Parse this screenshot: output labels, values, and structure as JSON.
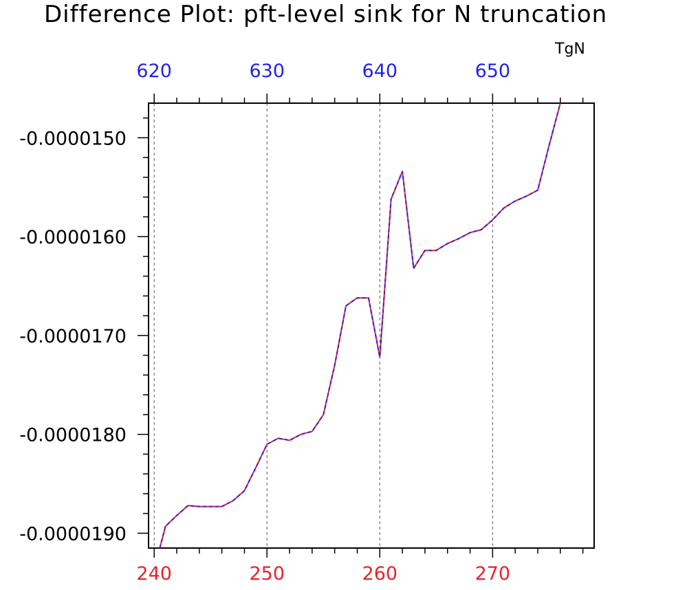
{
  "chart_data": {
    "type": "line",
    "title": "Difference Plot: pft-level sink for N truncation",
    "top_axis_label": "TgN",
    "colors": {
      "bottom_ticks": "#e8232a",
      "top_ticks": "#2323e8",
      "line_solid": "#e8232a",
      "line_dashed": "#2323e8",
      "frame": "#000000",
      "grid": "#555555"
    },
    "xlim": [
      239.5,
      279
    ],
    "ylim": [
      -1.915e-05,
      -1.465e-05
    ],
    "x_bottom_ticks": [
      240,
      250,
      260,
      270
    ],
    "x_bottom_tick_labels": [
      "240",
      "250",
      "260",
      "270"
    ],
    "x_top_ticks": [
      240,
      250,
      260,
      270
    ],
    "x_top_tick_labels": [
      "620",
      "630",
      "640",
      "650"
    ],
    "y_ticks": [
      -1.5e-05,
      -1.6e-05,
      -1.7e-05,
      -1.8e-05,
      -1.9e-05
    ],
    "y_tick_labels": [
      "-0.0000150",
      "-0.0000160",
      "-0.0000170",
      "-0.0000180",
      "-0.0000190"
    ],
    "grid": "vertical dashed lines at major bottom ticks",
    "series": [
      {
        "x": [
          240.5,
          241,
          242,
          243,
          244,
          245,
          246,
          247,
          248,
          249,
          250,
          251,
          252,
          253,
          254,
          255,
          256,
          257,
          258,
          259,
          260,
          261,
          262,
          263,
          264,
          265,
          266,
          267,
          268,
          269,
          270,
          271,
          272,
          273,
          274,
          275,
          276
        ],
        "y": [
          -1.915e-05,
          -1.893e-05,
          -1.882e-05,
          -1.872e-05,
          -1.873e-05,
          -1.873e-05,
          -1.873e-05,
          -1.867e-05,
          -1.857e-05,
          -1.834e-05,
          -1.81e-05,
          -1.804e-05,
          -1.806e-05,
          -1.8e-05,
          -1.797e-05,
          -1.78e-05,
          -1.73e-05,
          -1.67e-05,
          -1.662e-05,
          -1.662e-05,
          -1.722e-05,
          -1.562e-05,
          -1.534e-05,
          -1.632e-05,
          -1.614e-05,
          -1.614e-05,
          -1.607e-05,
          -1.602e-05,
          -1.596e-05,
          -1.593e-05,
          -1.583e-05,
          -1.571e-05,
          -1.564e-05,
          -1.559e-05,
          -1.553e-05,
          -1.508e-05,
          -1.465e-05
        ]
      }
    ]
  }
}
